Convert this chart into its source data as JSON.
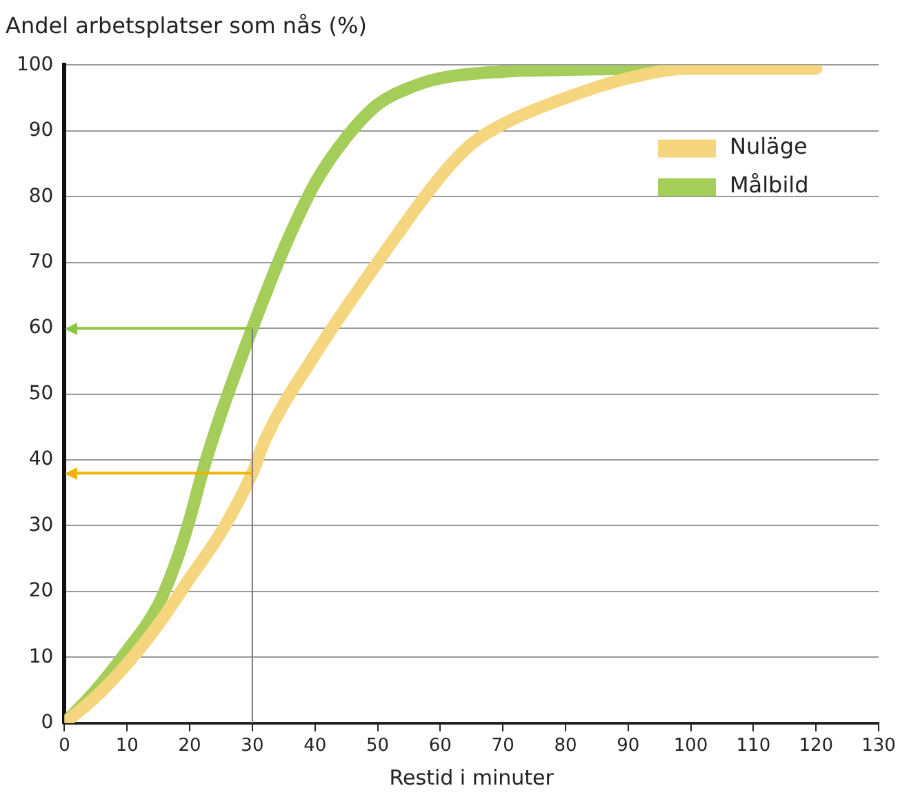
{
  "chart_data": {
    "type": "line",
    "ylabel": "Andel arbetsplatser som nås (%)",
    "xlabel": "Restid i minuter",
    "xlim": [
      0,
      130
    ],
    "xticks": [
      0,
      10,
      20,
      30,
      40,
      50,
      60,
      70,
      80,
      90,
      100,
      110,
      120,
      130
    ],
    "ylim": [
      0,
      100
    ],
    "yticks": [
      0,
      10,
      20,
      30,
      40,
      50,
      60,
      70,
      80,
      90,
      100
    ],
    "grid": "y",
    "legend": "top right",
    "marker": "none",
    "line_style": "solid",
    "series": [
      {
        "name": "Nuläge",
        "color": "#f5d67e",
        "x": [
          0,
          5,
          10,
          15,
          20,
          25,
          30,
          32,
          40,
          50,
          60,
          65,
          70,
          80,
          90,
          100,
          120
        ],
        "values": [
          0,
          4,
          9,
          15,
          22,
          29,
          38,
          43,
          56,
          70,
          83,
          88,
          91,
          95,
          98,
          99.5,
          99.5
        ]
      },
      {
        "name": "Målbild",
        "color": "#a5cd5a",
        "x": [
          0,
          5,
          10,
          15,
          18,
          20,
          22,
          25,
          30,
          35,
          40,
          45,
          50,
          55,
          60,
          70,
          80,
          100,
          120
        ],
        "values": [
          0,
          5,
          11,
          18,
          25,
          31,
          38,
          47,
          60,
          72,
          82,
          89,
          94,
          96.5,
          98,
          99,
          99.3,
          99.5,
          99.5
        ]
      }
    ],
    "ref_lines": [
      {
        "axis": "y",
        "value": 60,
        "color": "#8cc63f"
      },
      {
        "axis": "y",
        "value": 38,
        "color": "#f0b400"
      },
      {
        "axis": "x",
        "value": 30,
        "color": "#777777"
      }
    ]
  }
}
